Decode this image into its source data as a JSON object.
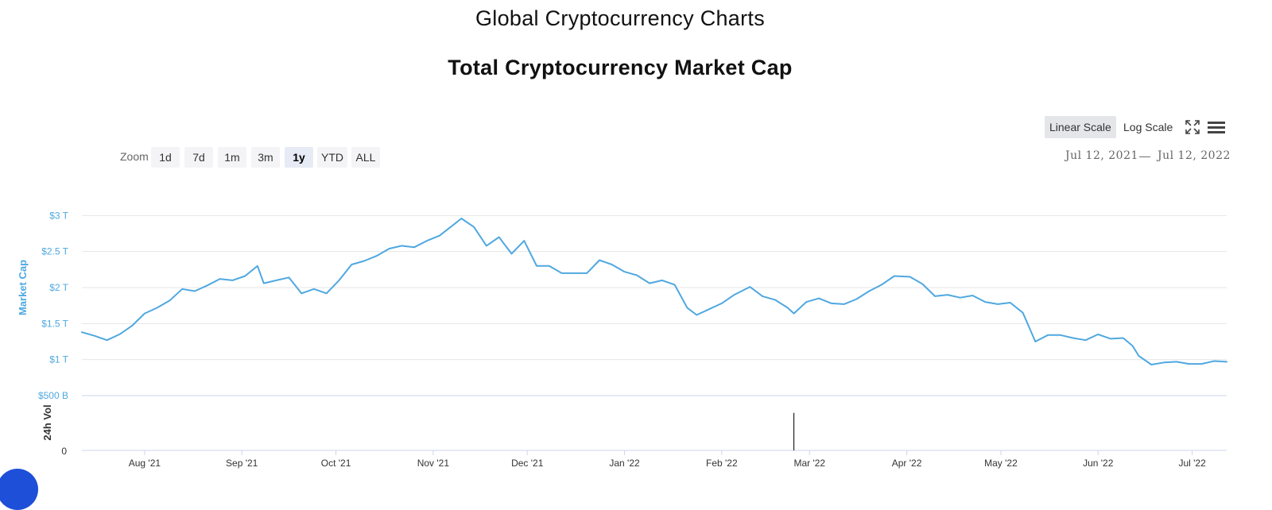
{
  "page": {
    "title": "Global Cryptocurrency Charts"
  },
  "toolbar": {
    "linear_scale": "Linear Scale",
    "log_scale": "Log Scale",
    "fullscreen_icon": "fullscreen-icon",
    "menu_icon": "hamburger-menu-icon"
  },
  "zoom": {
    "label": "Zoom",
    "buttons": [
      "1d",
      "7d",
      "1m",
      "3m",
      "1y",
      "YTD",
      "ALL"
    ],
    "selected": "1y"
  },
  "date_range": {
    "from": "Jul 12, 2021",
    "separator": "—",
    "to": "Jul 12, 2022"
  },
  "colors": {
    "line": "#4fa8e0",
    "axis_label": "#4fa8e0",
    "grid": "#e6e6e6",
    "volume": "#222222"
  },
  "chart_data": {
    "type": "line",
    "title": "Total Cryptocurrency Market Cap",
    "ylabel": "Market Cap",
    "ylabel2": "24h Vol",
    "ytick_labels": [
      "$500 B",
      "$1 T",
      "$1.5 T",
      "$2 T",
      "$2.5 T",
      "$3 T"
    ],
    "ytick_values": [
      0.5,
      1,
      1.5,
      2,
      2.5,
      3
    ],
    "ylim": [
      0.5,
      3.5
    ],
    "y_unit": "trillion USD",
    "vol_axis_label": "0",
    "xlim": [
      "2021-07-12",
      "2022-07-12"
    ],
    "xtick_labels": [
      "Aug '21",
      "Sep '21",
      "Oct '21",
      "Nov '21",
      "Dec '21",
      "Jan '22",
      "Feb '22",
      "Mar '22",
      "Apr '22",
      "May '22",
      "Jun '22",
      "Jul '22"
    ],
    "xtick_dates": [
      "2021-08-01",
      "2021-09-01",
      "2021-10-01",
      "2021-11-01",
      "2021-12-01",
      "2022-01-01",
      "2022-02-01",
      "2022-03-01",
      "2022-04-01",
      "2022-05-01",
      "2022-06-01",
      "2022-07-01"
    ],
    "grid": true,
    "legend": "none",
    "series": [
      {
        "x": [
          "2021-07-12",
          "2021-07-16",
          "2021-07-20",
          "2021-07-24",
          "2021-07-28",
          "2021-08-01",
          "2021-08-05",
          "2021-08-09",
          "2021-08-13",
          "2021-08-17",
          "2021-08-21",
          "2021-08-25",
          "2021-08-29",
          "2021-09-02",
          "2021-09-06",
          "2021-09-08",
          "2021-09-12",
          "2021-09-16",
          "2021-09-20",
          "2021-09-24",
          "2021-09-28",
          "2021-10-02",
          "2021-10-06",
          "2021-10-10",
          "2021-10-14",
          "2021-10-18",
          "2021-10-22",
          "2021-10-26",
          "2021-10-30",
          "2021-11-03",
          "2021-11-08",
          "2021-11-10",
          "2021-11-14",
          "2021-11-18",
          "2021-11-22",
          "2021-11-26",
          "2021-11-30",
          "2021-12-04",
          "2021-12-08",
          "2021-12-12",
          "2021-12-16",
          "2021-12-20",
          "2021-12-24",
          "2021-12-28",
          "2022-01-01",
          "2022-01-05",
          "2022-01-09",
          "2022-01-13",
          "2022-01-17",
          "2022-01-21",
          "2022-01-24",
          "2022-01-28",
          "2022-02-01",
          "2022-02-05",
          "2022-02-10",
          "2022-02-14",
          "2022-02-18",
          "2022-02-22",
          "2022-02-24",
          "2022-02-28",
          "2022-03-04",
          "2022-03-08",
          "2022-03-12",
          "2022-03-16",
          "2022-03-20",
          "2022-03-24",
          "2022-03-28",
          "2022-04-02",
          "2022-04-06",
          "2022-04-10",
          "2022-04-14",
          "2022-04-18",
          "2022-04-22",
          "2022-04-26",
          "2022-04-30",
          "2022-05-04",
          "2022-05-08",
          "2022-05-10",
          "2022-05-12",
          "2022-05-16",
          "2022-05-20",
          "2022-05-24",
          "2022-05-28",
          "2022-06-01",
          "2022-06-05",
          "2022-06-09",
          "2022-06-12",
          "2022-06-14",
          "2022-06-18",
          "2022-06-22",
          "2022-06-26",
          "2022-06-30",
          "2022-07-04",
          "2022-07-08",
          "2022-07-12"
        ],
        "y": [
          1.38,
          1.33,
          1.27,
          1.35,
          1.47,
          1.64,
          1.72,
          1.82,
          1.98,
          1.95,
          2.03,
          2.12,
          2.1,
          2.16,
          2.3,
          2.06,
          2.1,
          2.14,
          1.92,
          1.98,
          1.92,
          2.1,
          2.32,
          2.37,
          2.44,
          2.54,
          2.58,
          2.56,
          2.65,
          2.72,
          2.89,
          2.96,
          2.84,
          2.58,
          2.7,
          2.47,
          2.65,
          2.3,
          2.3,
          2.2,
          2.2,
          2.2,
          2.38,
          2.32,
          2.22,
          2.17,
          2.06,
          2.1,
          2.04,
          1.72,
          1.62,
          1.7,
          1.78,
          1.9,
          2.01,
          1.88,
          1.83,
          1.72,
          1.64,
          1.8,
          1.85,
          1.78,
          1.77,
          1.84,
          1.95,
          2.04,
          2.16,
          2.15,
          2.05,
          1.88,
          1.9,
          1.86,
          1.89,
          1.8,
          1.77,
          1.79,
          1.65,
          1.45,
          1.25,
          1.34,
          1.34,
          1.3,
          1.27,
          1.35,
          1.29,
          1.3,
          1.19,
          1.05,
          0.93,
          0.96,
          0.97,
          0.94,
          0.94,
          0.98,
          0.97
        ]
      }
    ],
    "volume_spike": {
      "x": "2022-02-24",
      "relative_height": 0.75
    }
  }
}
